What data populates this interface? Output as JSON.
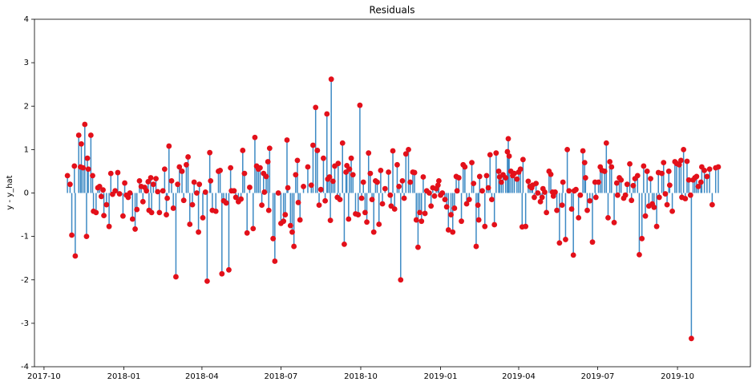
{
  "chart_data": {
    "type": "stem",
    "title": "Residuals",
    "ylabel": "y - y_hat",
    "stem_color": "#3d8ac4",
    "marker_color": "#e3101a",
    "xlim": [
      "2017-09-20",
      "2019-12-24"
    ],
    "xticks": [
      "2017-10",
      "2018-01",
      "2018-04",
      "2018-07",
      "2018-10",
      "2019-01",
      "2019-04",
      "2019-07",
      "2019-10"
    ],
    "ylim": [
      -4,
      4
    ],
    "yticks": [
      -4,
      -3,
      -2,
      -1,
      0,
      1,
      2,
      3,
      4
    ],
    "x": [
      "2017-10-28",
      "2017-10-31",
      "2017-11-02",
      "2017-11-05",
      "2017-11-06",
      "2017-11-10",
      "2017-11-12",
      "2017-11-13",
      "2017-11-15",
      "2017-11-17",
      "2017-11-19",
      "2017-11-20",
      "2017-11-21",
      "2017-11-24",
      "2017-11-26",
      "2017-11-27",
      "2017-11-30",
      "2017-12-02",
      "2017-12-04",
      "2017-12-06",
      "2017-12-08",
      "2017-12-09",
      "2017-12-12",
      "2017-12-15",
      "2017-12-17",
      "2017-12-19",
      "2017-12-22",
      "2017-12-25",
      "2017-12-27",
      "2017-12-31",
      "2018-01-02",
      "2018-01-04",
      "2018-01-06",
      "2018-01-08",
      "2018-01-11",
      "2018-01-14",
      "2018-01-16",
      "2018-01-19",
      "2018-01-21",
      "2018-01-23",
      "2018-01-25",
      "2018-01-27",
      "2018-01-29",
      "2018-01-30",
      "2018-02-01",
      "2018-02-02",
      "2018-02-04",
      "2018-02-07",
      "2018-02-09",
      "2018-02-11",
      "2018-02-15",
      "2018-02-17",
      "2018-02-19",
      "2018-02-20",
      "2018-02-22",
      "2018-02-25",
      "2018-02-27",
      "2018-03-02",
      "2018-03-04",
      "2018-03-06",
      "2018-03-09",
      "2018-03-11",
      "2018-03-14",
      "2018-03-16",
      "2018-03-18",
      "2018-03-21",
      "2018-03-23",
      "2018-03-26",
      "2018-03-28",
      "2018-03-29",
      "2018-04-02",
      "2018-04-05",
      "2018-04-07",
      "2018-04-10",
      "2018-04-11",
      "2018-04-13",
      "2018-04-17",
      "2018-04-20",
      "2018-04-22",
      "2018-04-24",
      "2018-04-26",
      "2018-04-29",
      "2018-05-02",
      "2018-05-04",
      "2018-05-05",
      "2018-05-08",
      "2018-05-10",
      "2018-05-13",
      "2018-05-16",
      "2018-05-18",
      "2018-05-20",
      "2018-05-23",
      "2018-05-26",
      "2018-05-30",
      "2018-06-01",
      "2018-06-03",
      "2018-06-05",
      "2018-06-07",
      "2018-06-09",
      "2018-06-11",
      "2018-06-12",
      "2018-06-14",
      "2018-06-16",
      "2018-06-17",
      "2018-06-18",
      "2018-06-22",
      "2018-06-24",
      "2018-06-28",
      "2018-07-01",
      "2018-07-04",
      "2018-07-06",
      "2018-07-08",
      "2018-07-09",
      "2018-07-12",
      "2018-07-14",
      "2018-07-16",
      "2018-07-18",
      "2018-07-20",
      "2018-07-21",
      "2018-07-23",
      "2018-07-27",
      "2018-08-01",
      "2018-08-05",
      "2018-08-07",
      "2018-08-10",
      "2018-08-12",
      "2018-08-14",
      "2018-08-16",
      "2018-08-19",
      "2018-08-21",
      "2018-08-23",
      "2018-08-24",
      "2018-08-26",
      "2018-08-27",
      "2018-08-28",
      "2018-08-30",
      "2018-09-01",
      "2018-09-04",
      "2018-09-05",
      "2018-09-07",
      "2018-09-10",
      "2018-09-12",
      "2018-09-14",
      "2018-09-15",
      "2018-09-17",
      "2018-09-18",
      "2018-09-20",
      "2018-09-22",
      "2018-09-25",
      "2018-09-28",
      "2018-09-30",
      "2018-10-02",
      "2018-10-04",
      "2018-10-06",
      "2018-10-08",
      "2018-10-10",
      "2018-10-12",
      "2018-10-14",
      "2018-10-16",
      "2018-10-18",
      "2018-10-20",
      "2018-10-22",
      "2018-10-24",
      "2018-10-26",
      "2018-10-29",
      "2018-11-02",
      "2018-11-04",
      "2018-11-05",
      "2018-11-07",
      "2018-11-09",
      "2018-11-12",
      "2018-11-14",
      "2018-11-16",
      "2018-11-18",
      "2018-11-20",
      "2018-11-22",
      "2018-11-25",
      "2018-11-27",
      "2018-11-30",
      "2018-12-02",
      "2018-12-04",
      "2018-12-06",
      "2018-12-08",
      "2018-12-10",
      "2018-12-12",
      "2018-12-14",
      "2018-12-16",
      "2018-12-19",
      "2018-12-21",
      "2018-12-23",
      "2018-12-25",
      "2018-12-27",
      "2018-12-29",
      "2018-12-30",
      "2019-01-01",
      "2019-01-03",
      "2019-01-06",
      "2019-01-08",
      "2019-01-10",
      "2019-01-13",
      "2019-01-15",
      "2019-01-17",
      "2019-01-19",
      "2019-01-20",
      "2019-01-22",
      "2019-01-25",
      "2019-01-27",
      "2019-01-29",
      "2019-01-31",
      "2019-02-03",
      "2019-02-06",
      "2019-02-08",
      "2019-02-11",
      "2019-02-13",
      "2019-02-14",
      "2019-02-15",
      "2019-02-18",
      "2019-02-21",
      "2019-02-23",
      "2019-02-25",
      "2019-02-27",
      "2019-03-01",
      "2019-03-04",
      "2019-03-06",
      "2019-03-09",
      "2019-03-10",
      "2019-03-12",
      "2019-03-14",
      "2019-03-17",
      "2019-03-19",
      "2019-03-20",
      "2019-03-21",
      "2019-03-23",
      "2019-03-25",
      "2019-03-27",
      "2019-03-30",
      "2019-04-01",
      "2019-04-03",
      "2019-04-05",
      "2019-04-06",
      "2019-04-09",
      "2019-04-12",
      "2019-04-14",
      "2019-04-16",
      "2019-04-17",
      "2019-04-19",
      "2019-04-21",
      "2019-04-23",
      "2019-04-26",
      "2019-04-28",
      "2019-04-29",
      "2019-05-01",
      "2019-05-03",
      "2019-05-06",
      "2019-05-08",
      "2019-05-10",
      "2019-05-11",
      "2019-05-13",
      "2019-05-15",
      "2019-05-18",
      "2019-05-21",
      "2019-05-22",
      "2019-05-25",
      "2019-05-27",
      "2019-05-29",
      "2019-06-01",
      "2019-06-03",
      "2019-06-04",
      "2019-06-06",
      "2019-06-09",
      "2019-06-11",
      "2019-06-14",
      "2019-06-16",
      "2019-06-17",
      "2019-06-19",
      "2019-06-22",
      "2019-06-25",
      "2019-06-28",
      "2019-06-29",
      "2019-07-02",
      "2019-07-04",
      "2019-07-06",
      "2019-07-09",
      "2019-07-11",
      "2019-07-13",
      "2019-07-15",
      "2019-07-17",
      "2019-07-20",
      "2019-07-23",
      "2019-07-24",
      "2019-07-26",
      "2019-07-28",
      "2019-07-31",
      "2019-08-02",
      "2019-08-04",
      "2019-08-07",
      "2019-08-09",
      "2019-08-11",
      "2019-08-13",
      "2019-08-16",
      "2019-08-18",
      "2019-08-21",
      "2019-08-23",
      "2019-08-25",
      "2019-08-27",
      "2019-08-29",
      "2019-08-31",
      "2019-09-02",
      "2019-09-04",
      "2019-09-07",
      "2019-09-09",
      "2019-09-10",
      "2019-09-13",
      "2019-09-15",
      "2019-09-17",
      "2019-09-19",
      "2019-09-21",
      "2019-09-22",
      "2019-09-25",
      "2019-09-28",
      "2019-09-30",
      "2019-10-03",
      "2019-10-05",
      "2019-10-06",
      "2019-10-08",
      "2019-10-10",
      "2019-10-12",
      "2019-10-14",
      "2019-10-16",
      "2019-10-17",
      "2019-10-19",
      "2019-10-21",
      "2019-10-23",
      "2019-10-25",
      "2019-10-28",
      "2019-10-29",
      "2019-11-01",
      "2019-11-04",
      "2019-11-07",
      "2019-11-10",
      "2019-11-14",
      "2019-11-17"
    ],
    "values": [
      0.4,
      0.2,
      -0.97,
      0.62,
      -1.45,
      1.33,
      0.6,
      1.13,
      0.58,
      1.58,
      -1.0,
      0.8,
      0.55,
      1.33,
      0.4,
      -0.42,
      -0.45,
      0.12,
      0.15,
      -0.08,
      0.07,
      -0.52,
      -0.27,
      -0.77,
      0.45,
      -0.03,
      0.05,
      0.47,
      -0.02,
      -0.53,
      0.23,
      -0.05,
      -0.1,
      0.0,
      -0.6,
      -0.83,
      -0.38,
      0.28,
      0.15,
      -0.2,
      0.13,
      0.05,
      0.26,
      -0.4,
      0.35,
      -0.45,
      0.2,
      0.33,
      0.03,
      -0.45,
      0.05,
      0.55,
      -0.5,
      -0.12,
      1.08,
      0.28,
      -0.35,
      -1.93,
      0.2,
      0.6,
      0.5,
      -0.17,
      0.65,
      0.83,
      -0.72,
      -0.27,
      0.25,
      0.0,
      -0.9,
      0.2,
      -0.57,
      0.02,
      -2.03,
      0.93,
      0.28,
      -0.4,
      -0.42,
      0.5,
      0.52,
      -1.86,
      -0.18,
      -0.23,
      -1.77,
      0.58,
      0.05,
      0.05,
      -0.1,
      -0.2,
      -0.14,
      0.98,
      0.45,
      -0.92,
      0.13,
      -0.82,
      1.28,
      0.62,
      0.55,
      0.58,
      -0.28,
      0.45,
      0.02,
      0.38,
      0.72,
      -0.4,
      1.03,
      -1.05,
      -1.57,
      0.0,
      -0.7,
      -0.65,
      -0.5,
      1.22,
      0.12,
      -0.75,
      -0.9,
      -1.23,
      0.42,
      0.75,
      -0.22,
      -0.62,
      0.15,
      0.6,
      0.18,
      1.1,
      1.97,
      0.98,
      -0.28,
      0.08,
      0.8,
      -0.18,
      1.82,
      0.32,
      0.37,
      -0.63,
      2.62,
      0.27,
      0.62,
      -0.1,
      0.68,
      -0.15,
      1.15,
      -1.18,
      0.48,
      0.63,
      -0.6,
      0.55,
      0.8,
      0.42,
      -0.48,
      -0.5,
      2.02,
      -0.12,
      0.25,
      -0.45,
      -0.67,
      0.92,
      0.45,
      -0.15,
      -0.9,
      0.28,
      0.25,
      -0.72,
      0.52,
      -0.25,
      0.1,
      0.48,
      -0.05,
      -0.3,
      0.97,
      -0.37,
      0.65,
      0.15,
      -2.0,
      0.28,
      -0.12,
      0.9,
      1.0,
      0.25,
      0.48,
      0.47,
      -0.62,
      -1.25,
      -0.45,
      -0.65,
      0.37,
      -0.47,
      0.05,
      0.0,
      -0.3,
      0.12,
      -0.07,
      0.1,
      0.18,
      0.28,
      -0.05,
      0.0,
      -0.15,
      -0.32,
      -0.85,
      -0.5,
      -0.9,
      -0.35,
      0.38,
      0.05,
      0.35,
      -0.65,
      0.65,
      0.6,
      -0.25,
      -0.15,
      0.7,
      0.22,
      -1.23,
      -0.28,
      -0.62,
      0.38,
      0.05,
      -0.77,
      0.4,
      0.12,
      0.88,
      -0.15,
      -0.73,
      0.92,
      0.5,
      0.37,
      0.25,
      0.42,
      0.35,
      0.95,
      1.25,
      0.85,
      0.5,
      0.4,
      0.45,
      0.32,
      0.48,
      0.55,
      -0.78,
      0.77,
      -0.77,
      0.27,
      0.15,
      0.12,
      0.18,
      -0.1,
      0.22,
      0.0,
      -0.2,
      -0.1,
      0.1,
      0.02,
      -0.45,
      0.5,
      0.43,
      0.02,
      -0.07,
      0.02,
      -0.4,
      -1.15,
      -0.28,
      0.25,
      -1.07,
      1.0,
      0.05,
      -0.37,
      -1.43,
      0.05,
      0.08,
      -0.57,
      -0.05,
      0.97,
      0.7,
      0.35,
      -0.4,
      -0.18,
      -1.13,
      0.25,
      -0.1,
      0.25,
      0.6,
      0.52,
      0.5,
      1.15,
      -0.57,
      0.72,
      0.6,
      -0.68,
      0.23,
      -0.05,
      0.35,
      0.3,
      -0.12,
      -0.05,
      0.2,
      0.67,
      -0.17,
      0.17,
      0.33,
      0.4,
      -1.42,
      -1.05,
      0.62,
      -0.53,
      0.5,
      -0.3,
      0.33,
      -0.25,
      -0.33,
      -0.77,
      0.47,
      -0.1,
      0.45,
      0.7,
      -0.02,
      -0.27,
      0.5,
      0.18,
      -0.42,
      0.72,
      0.68,
      0.65,
      0.75,
      -0.1,
      1.0,
      -0.13,
      0.73,
      0.3,
      -0.05,
      -3.35,
      0.3,
      0.35,
      0.38,
      0.15,
      0.25,
      0.6,
      0.52,
      0.38,
      0.55,
      -0.27,
      0.58,
      0.6
    ]
  }
}
